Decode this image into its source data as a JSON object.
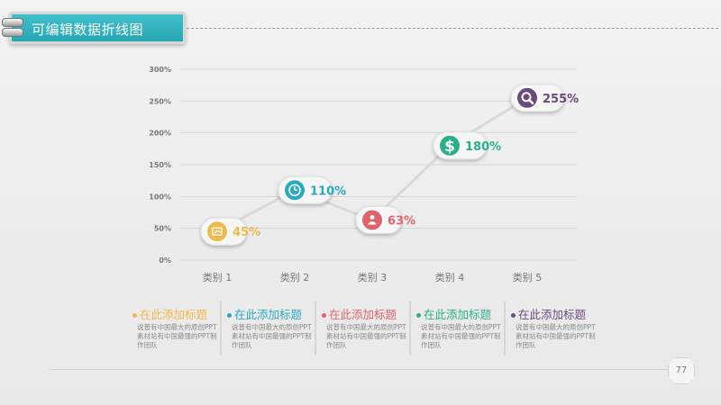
{
  "header": {
    "title": "可编辑数据折线图"
  },
  "page_number": "77",
  "colors": {
    "accent": "#26a8b4",
    "point_1": "#f2b84b",
    "point_2": "#29a9c2",
    "point_3": "#e0636b",
    "point_4": "#29b08a",
    "point_5": "#6b4a7c",
    "line": "#d9d9d9"
  },
  "chart_data": {
    "type": "line",
    "categories": [
      "类别 1",
      "类别 2",
      "类别 3",
      "类别 4",
      "类别 5"
    ],
    "values": [
      45,
      110,
      63,
      180,
      255
    ],
    "data_labels": [
      "45%",
      "110%",
      "63%",
      "180%",
      "255%"
    ],
    "y_ticks": [
      "0%",
      "50%",
      "100%",
      "150%",
      "200%",
      "250%",
      "300%"
    ],
    "ylim": [
      0,
      300
    ],
    "grid": true,
    "point_icons": [
      "chart-icon",
      "clock-icon",
      "person-icon",
      "dollar-icon",
      "search-icon"
    ]
  },
  "cards": [
    {
      "title": "在此添加标题",
      "body": "说普有中国最大的原创PPT素材站有中国最强的PPT制作团队",
      "color": "#f2b84b"
    },
    {
      "title": "在此添加标题",
      "body": "说普有中国最大的原创PPT素材站有中国最强的PPT制作团队",
      "color": "#29a9c2"
    },
    {
      "title": "在此添加标题",
      "body": "说普有中国最大的原创PPT素材站有中国最强的PPT制作团队",
      "color": "#e0636b"
    },
    {
      "title": "在此添加标题",
      "body": "说普有中国最大的原创PPT素材站有中国最强的PPT制作团队",
      "color": "#29b08a"
    },
    {
      "title": "在此添加标题",
      "body": "说普有中国最大的原创PPT素材站有中国最强的PPT制作团队",
      "color": "#6b4a7c"
    }
  ]
}
